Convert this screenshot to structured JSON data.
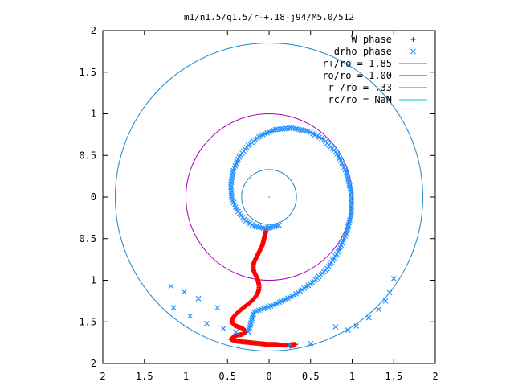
{
  "chart_data": {
    "type": "scatter",
    "title": "m1/n1.5/q1.5/r-+.18-j94/M5.0/512",
    "xlim": [
      -2,
      2
    ],
    "ylim": [
      -2,
      2
    ],
    "x_ticks": [
      -2,
      -1.5,
      -1,
      -0.5,
      0,
      0.5,
      1,
      1.5,
      2
    ],
    "y_ticks": [
      -2,
      -1.5,
      -1,
      -0.5,
      0,
      0.5,
      1,
      1.5,
      2
    ],
    "x_tick_labels": [
      "2",
      "1.5",
      "1",
      "0.5",
      "0",
      "0.5",
      "1",
      "1.5",
      "2"
    ],
    "y_tick_labels": [
      "2",
      "1.5",
      "1",
      "0.5",
      "0",
      "0.5",
      "1",
      "1.5",
      "2"
    ],
    "grid": false,
    "legend_position": "top-right",
    "legend": [
      {
        "label": "W phase",
        "kind": "plus",
        "color": "#ff0000"
      },
      {
        "label": "drho phase",
        "kind": "cross",
        "color": "#1e90ff"
      },
      {
        "label": "r+/ro = 1.85",
        "kind": "line",
        "color": "#1c86c8"
      },
      {
        "label": "ro/ro = 1.00",
        "kind": "line",
        "color": "#b000c0"
      },
      {
        "label": "r-/ro = .33",
        "kind": "line",
        "color": "#1c86c8"
      },
      {
        "label": "rc/ro = NaN",
        "kind": "line",
        "color": "#00c8c8"
      }
    ],
    "circles": [
      {
        "name": "r+/ro = 1.85",
        "radius": 1.85,
        "color": "#1c86c8"
      },
      {
        "name": "ro/ro = 1.00",
        "radius": 1.0,
        "color": "#b000c0"
      },
      {
        "name": "r-/ro = .33",
        "radius": 0.33,
        "color": "#1c86c8"
      }
    ],
    "series": [
      {
        "name": "W phase",
        "color": "#ff0000",
        "marker": "plus",
        "points": [
          [
            -0.03,
            -0.38
          ],
          [
            -0.04,
            -0.42
          ],
          [
            -0.05,
            -0.46
          ],
          [
            -0.06,
            -0.5
          ],
          [
            -0.07,
            -0.54
          ],
          [
            -0.08,
            -0.58
          ],
          [
            -0.1,
            -0.62
          ],
          [
            -0.12,
            -0.66
          ],
          [
            -0.14,
            -0.7
          ],
          [
            -0.16,
            -0.74
          ],
          [
            -0.18,
            -0.78
          ],
          [
            -0.19,
            -0.82
          ],
          [
            -0.19,
            -0.86
          ],
          [
            -0.18,
            -0.9
          ],
          [
            -0.16,
            -0.94
          ],
          [
            -0.14,
            -0.98
          ],
          [
            -0.13,
            -1.02
          ],
          [
            -0.12,
            -1.06
          ],
          [
            -0.12,
            -1.1
          ],
          [
            -0.13,
            -1.14
          ],
          [
            -0.15,
            -1.18
          ],
          [
            -0.18,
            -1.22
          ],
          [
            -0.22,
            -1.26
          ],
          [
            -0.27,
            -1.3
          ],
          [
            -0.32,
            -1.34
          ],
          [
            -0.37,
            -1.38
          ],
          [
            -0.41,
            -1.42
          ],
          [
            -0.44,
            -1.46
          ],
          [
            -0.45,
            -1.5
          ],
          [
            -0.42,
            -1.54
          ],
          [
            -0.37,
            -1.56
          ],
          [
            -0.31,
            -1.58
          ],
          [
            -0.28,
            -1.62
          ],
          [
            -0.32,
            -1.65
          ],
          [
            -0.38,
            -1.66
          ],
          [
            -0.43,
            -1.68
          ],
          [
            -0.46,
            -1.71
          ],
          [
            -0.4,
            -1.73
          ],
          [
            -0.32,
            -1.74
          ],
          [
            -0.22,
            -1.75
          ],
          [
            -0.12,
            -1.76
          ],
          [
            -0.02,
            -1.77
          ],
          [
            0.08,
            -1.77
          ],
          [
            0.17,
            -1.78
          ],
          [
            0.23,
            -1.78
          ],
          [
            0.28,
            -1.77
          ],
          [
            0.32,
            -1.77
          ],
          [
            0.25,
            -1.79
          ],
          [
            0.3,
            -1.78
          ]
        ]
      },
      {
        "name": "drho phase",
        "color": "#1e90ff",
        "marker": "cross",
        "points": [
          [
            -0.25,
            -1.62
          ],
          [
            -0.18,
            -1.38
          ],
          [
            0.05,
            -1.3
          ],
          [
            0.3,
            -1.18
          ],
          [
            0.52,
            -1.03
          ],
          [
            0.7,
            -0.86
          ],
          [
            0.83,
            -0.66
          ],
          [
            0.93,
            -0.44
          ],
          [
            0.99,
            -0.2
          ],
          [
            0.99,
            0.05
          ],
          [
            0.93,
            0.3
          ],
          [
            0.82,
            0.52
          ],
          [
            0.66,
            0.69
          ],
          [
            0.47,
            0.79
          ],
          [
            0.27,
            0.83
          ],
          [
            0.08,
            0.81
          ],
          [
            -0.1,
            0.74
          ],
          [
            -0.25,
            0.62
          ],
          [
            -0.36,
            0.48
          ],
          [
            -0.43,
            0.32
          ],
          [
            -0.46,
            0.15
          ],
          [
            -0.45,
            -0.01
          ],
          [
            -0.39,
            -0.15
          ],
          [
            -0.3,
            -0.27
          ],
          [
            -0.18,
            -0.35
          ],
          [
            -0.04,
            -0.38
          ],
          [
            0.12,
            -0.34
          ],
          [
            -0.62,
            -1.33
          ],
          [
            -0.85,
            -1.22
          ],
          [
            -1.02,
            -1.14
          ],
          [
            -1.18,
            -1.07
          ],
          [
            -1.15,
            -1.33
          ],
          [
            -0.95,
            -1.43
          ],
          [
            -0.75,
            -1.52
          ],
          [
            -0.55,
            -1.58
          ],
          [
            -0.4,
            -1.62
          ],
          [
            0.25,
            -1.78
          ],
          [
            0.5,
            -1.76
          ],
          [
            0.8,
            -1.56
          ],
          [
            0.95,
            -1.6
          ],
          [
            1.05,
            -1.55
          ],
          [
            1.2,
            -1.45
          ],
          [
            1.32,
            -1.35
          ],
          [
            1.4,
            -1.25
          ],
          [
            1.45,
            -1.15
          ],
          [
            1.5,
            -0.98
          ]
        ]
      }
    ]
  }
}
